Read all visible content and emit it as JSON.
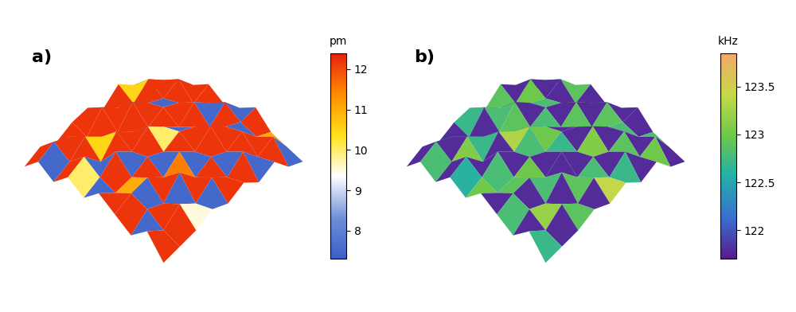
{
  "chart_data": [
    {
      "type": "surface",
      "title": "a)",
      "tick_labels": false,
      "z": [
        [
          2,
          5,
          3,
          6,
          4,
          7,
          5,
          3,
          6,
          2
        ],
        [
          4,
          7,
          5,
          8,
          6,
          5,
          7,
          6,
          4,
          3
        ],
        [
          3,
          6,
          8,
          5,
          9,
          6,
          8,
          5,
          7,
          4
        ],
        [
          5,
          4,
          6,
          9,
          7,
          8,
          6,
          9,
          5,
          6
        ],
        [
          6,
          8,
          5,
          7,
          10,
          7,
          9,
          6,
          8,
          5
        ],
        [
          4,
          6,
          9,
          6,
          8,
          9,
          7,
          8,
          6,
          7
        ],
        [
          7,
          5,
          7,
          8,
          6,
          8,
          10,
          7,
          9,
          5
        ],
        [
          5,
          8,
          6,
          7,
          9,
          6,
          8,
          9,
          6,
          7
        ],
        [
          3,
          6,
          8,
          5,
          7,
          9,
          7,
          6,
          8,
          4
        ],
        [
          0,
          4,
          5,
          7,
          5,
          6,
          8,
          5,
          4,
          3
        ]
      ],
      "cells": [
        [
          12.2,
          7.5,
          12.2,
          10.0,
          7.5,
          12.2,
          12.2,
          7.5,
          12.2,
          7.5
        ],
        [
          7.5,
          12.2,
          12.2,
          7.5,
          12.2,
          11.0,
          7.5,
          12.2,
          12.2,
          7.5
        ],
        [
          12.2,
          7.5,
          10.5,
          12.2,
          7.5,
          12.2,
          12.2,
          7.5,
          9.5,
          12.2
        ],
        [
          12.2,
          12.2,
          7.5,
          12.2,
          12.2,
          7.5,
          11.5,
          12.2,
          7.5,
          12.2
        ],
        [
          7.5,
          12.2,
          12.2,
          7.5,
          10.0,
          12.2,
          7.5,
          12.2,
          12.2,
          7.5
        ],
        [
          12.2,
          7.5,
          12.2,
          12.2,
          7.5,
          12.2,
          12.2,
          7.5,
          12.2,
          12.2
        ],
        [
          10.5,
          12.2,
          7.5,
          12.2,
          12.2,
          7.5,
          12.2,
          12.2,
          7.5,
          12.2
        ],
        [
          7.5,
          12.2,
          12.2,
          9.0,
          7.5,
          12.2,
          7.5,
          12.2,
          12.2,
          7.5
        ],
        [
          12.2,
          7.5,
          12.2,
          12.2,
          12.2,
          7.5,
          12.2,
          11.0,
          7.5,
          12.2
        ],
        [
          7.5,
          12.2,
          7.5,
          12.2,
          7.5,
          12.2,
          12.2,
          7.5,
          12.2,
          7.5
        ]
      ],
      "colorbar": {
        "label": "pm",
        "range": [
          7.3,
          12.4
        ],
        "ticks": [
          8,
          9,
          10,
          11,
          12
        ]
      }
    },
    {
      "type": "surface",
      "title": "b)",
      "tick_labels": false,
      "z": [
        [
          2,
          5,
          3,
          6,
          4,
          7,
          5,
          3,
          6,
          2
        ],
        [
          4,
          7,
          5,
          8,
          6,
          5,
          7,
          6,
          4,
          3
        ],
        [
          3,
          6,
          8,
          5,
          9,
          6,
          8,
          5,
          7,
          4
        ],
        [
          5,
          4,
          6,
          9,
          7,
          8,
          6,
          9,
          5,
          6
        ],
        [
          6,
          8,
          5,
          7,
          10,
          7,
          9,
          6,
          8,
          5
        ],
        [
          4,
          6,
          9,
          6,
          8,
          9,
          7,
          8,
          6,
          7
        ],
        [
          7,
          5,
          7,
          8,
          6,
          8,
          10,
          7,
          9,
          5
        ],
        [
          5,
          8,
          6,
          7,
          9,
          6,
          8,
          9,
          6,
          7
        ],
        [
          3,
          6,
          8,
          5,
          7,
          9,
          7,
          6,
          8,
          4
        ],
        [
          0,
          4,
          5,
          7,
          5,
          6,
          8,
          5,
          4,
          3
        ]
      ],
      "cells": [
        [
          121.8,
          122.8,
          121.8,
          122.6,
          123.0,
          121.8,
          122.8,
          121.8,
          122.7,
          121.8
        ],
        [
          122.8,
          121.8,
          123.1,
          121.8,
          122.8,
          122.9,
          121.8,
          123.2,
          121.8,
          122.6
        ],
        [
          121.8,
          122.9,
          122.7,
          121.8,
          121.8,
          123.0,
          122.8,
          121.8,
          122.9,
          121.8
        ],
        [
          122.7,
          121.8,
          121.8,
          123.3,
          122.8,
          121.8,
          121.8,
          122.9,
          121.8,
          122.8
        ],
        [
          121.8,
          122.8,
          122.9,
          121.8,
          123.0,
          122.7,
          121.8,
          122.8,
          123.4,
          121.8
        ],
        [
          122.9,
          121.8,
          121.8,
          122.8,
          121.8,
          121.8,
          123.1,
          121.8,
          122.7,
          121.8
        ],
        [
          121.8,
          123.0,
          122.8,
          121.8,
          122.9,
          122.8,
          121.8,
          122.9,
          121.8,
          122.8
        ],
        [
          122.8,
          121.8,
          121.8,
          123.2,
          121.8,
          122.9,
          122.8,
          121.8,
          123.0,
          121.8
        ],
        [
          121.8,
          122.7,
          122.9,
          121.8,
          122.8,
          121.8,
          121.8,
          122.8,
          121.8,
          122.7
        ],
        [
          121.8,
          121.8,
          122.8,
          121.8,
          121.8,
          122.7,
          121.8,
          121.8,
          122.8,
          121.8
        ]
      ],
      "colorbar": {
        "label": "kHz",
        "range": [
          121.7,
          123.85
        ],
        "ticks": [
          122,
          122.5,
          123,
          123.5
        ]
      }
    }
  ]
}
